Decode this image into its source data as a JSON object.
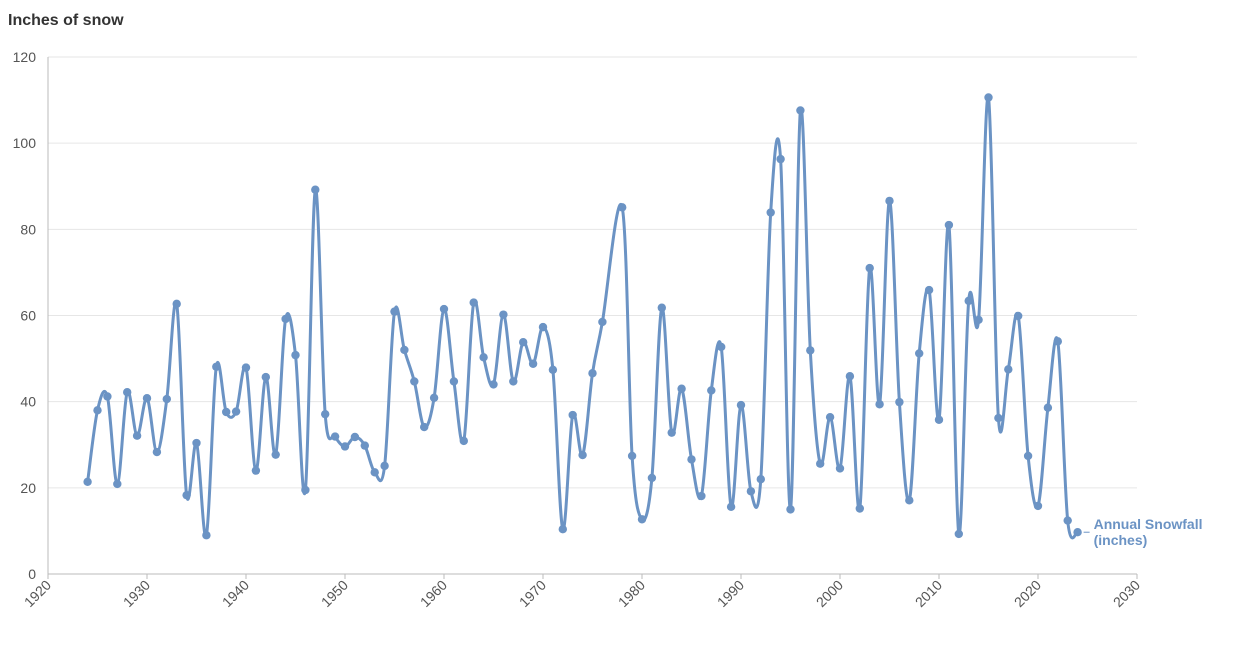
{
  "chart_data": {
    "type": "line",
    "title": "Inches of snow",
    "xlabel": "",
    "ylabel": "Inches of snow",
    "xlim": [
      1920,
      2030
    ],
    "ylim": [
      0,
      120
    ],
    "x_ticks": [
      1920,
      1930,
      1940,
      1950,
      1960,
      1970,
      1980,
      1990,
      2000,
      2010,
      2020,
      2030
    ],
    "y_ticks": [
      0,
      20,
      40,
      60,
      80,
      100,
      120
    ],
    "grid": true,
    "colors": {
      "series": "#6b93c4",
      "grid": "#e6e6e6",
      "axis": "#bbbbbb",
      "text": "#555555",
      "title": "#333333"
    },
    "series": [
      {
        "name": "Annual Snowfall (inches)",
        "label_lines": [
          "Annual Snowfall",
          "(inches)"
        ],
        "x": [
          1924,
          1925,
          1926,
          1927,
          1928,
          1929,
          1930,
          1931,
          1932,
          1933,
          1934,
          1935,
          1936,
          1937,
          1938,
          1939,
          1940,
          1941,
          1942,
          1943,
          1944,
          1945,
          1946,
          1947,
          1948,
          1949,
          1950,
          1951,
          1952,
          1953,
          1954,
          1955,
          1956,
          1957,
          1958,
          1959,
          1960,
          1961,
          1962,
          1963,
          1964,
          1965,
          1966,
          1967,
          1968,
          1969,
          1970,
          1971,
          1972,
          1973,
          1974,
          1975,
          1976,
          1978,
          1979,
          1980,
          1981,
          1982,
          1983,
          1984,
          1985,
          1986,
          1987,
          1988,
          1989,
          1990,
          1991,
          1992,
          1993,
          1994,
          1995,
          1996,
          1997,
          1998,
          1999,
          2000,
          2001,
          2002,
          2003,
          2004,
          2005,
          2006,
          2007,
          2008,
          2009,
          2010,
          2011,
          2012,
          2013,
          2014,
          2015,
          2016,
          2017,
          2018,
          2019,
          2020,
          2021,
          2022,
          2023,
          2024
        ],
        "values": [
          21.4,
          38,
          41.2,
          20.9,
          42.2,
          32.1,
          40.8,
          28.3,
          40.6,
          62.7,
          18.3,
          30.4,
          9,
          48.1,
          37.6,
          37.7,
          47.9,
          24,
          45.7,
          27.7,
          59.2,
          50.8,
          19.5,
          89.2,
          37.1,
          31.9,
          29.6,
          31.8,
          29.8,
          23.6,
          25.1,
          60.9,
          52,
          44.7,
          34.1,
          40.9,
          61.5,
          44.7,
          30.9,
          63,
          50.3,
          44,
          60.2,
          44.7,
          53.8,
          48.8,
          57.3,
          47.4,
          10.4,
          36.9,
          27.6,
          46.6,
          58.5,
          85.1,
          27.4,
          12.7,
          22.3,
          61.8,
          32.8,
          43,
          26.6,
          18.1,
          42.6,
          52.7,
          15.6,
          39.2,
          19.2,
          22,
          83.9,
          96.3,
          15,
          107.6,
          51.9,
          25.6,
          36.4,
          24.5,
          45.9,
          15.2,
          71,
          39.4,
          86.6,
          39.9,
          17.1,
          51.2,
          65.9,
          35.8,
          81,
          9.3,
          63.4,
          59,
          110.6,
          36.2,
          47.5,
          59.9,
          27.4,
          15.8,
          38.6,
          54,
          12.4,
          9.7
        ]
      }
    ]
  }
}
